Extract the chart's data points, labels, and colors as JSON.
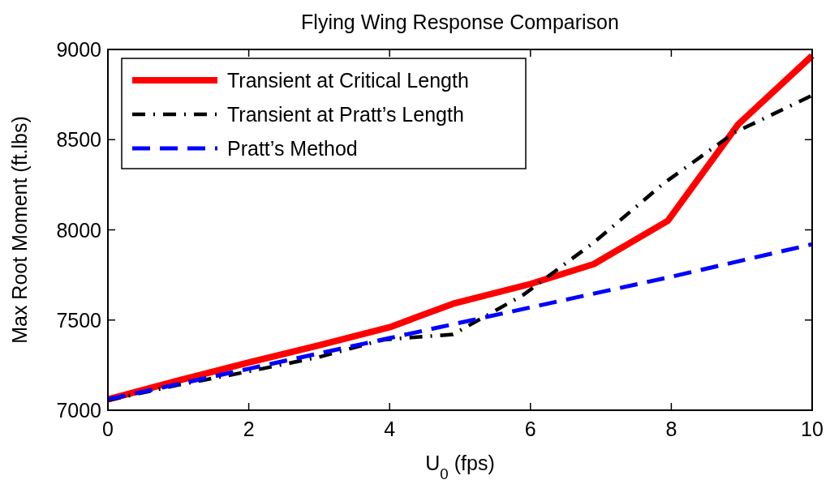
{
  "chart_data": {
    "type": "line",
    "title": "Flying Wing Response Comparison",
    "xlabel": "U$_{0}$ (fps)",
    "ylabel": "Max Root Moment (ft.lbs)",
    "xlim": [
      0,
      10
    ],
    "xticks": [
      0,
      2,
      4,
      6,
      8,
      10
    ],
    "ylim": [
      7000,
      9000
    ],
    "yticks": [
      7000,
      7500,
      8000,
      8500,
      9000
    ],
    "grid": false,
    "legend": "top left",
    "series": [
      {
        "name": "Transient at Critical Length",
        "color": "#ff0000",
        "line_style": "solid",
        "x": [
          0,
          1,
          2,
          3,
          4,
          4.9,
          6,
          6.9,
          7.95,
          8.95,
          10
        ],
        "values": [
          7060,
          7165,
          7265,
          7360,
          7460,
          7590,
          7700,
          7810,
          8050,
          8585,
          8965
        ]
      },
      {
        "name": "Transient at Pratt’s Length",
        "color": "#000000",
        "line_style": "dashdot",
        "x": [
          0,
          1,
          2,
          3,
          3.9,
          4.2,
          4.9,
          5.9,
          6.9,
          7.9,
          8.9,
          10
        ],
        "values": [
          7055,
          7140,
          7215,
          7295,
          7390,
          7400,
          7420,
          7640,
          7930,
          8260,
          8540,
          8745
        ]
      },
      {
        "name": "Pratt’s Method",
        "color": "#0000ff",
        "line_style": "dashed",
        "x": [
          0,
          2,
          4,
          6,
          8,
          10
        ],
        "values": [
          7060,
          7230,
          7400,
          7570,
          7740,
          7920
        ]
      }
    ]
  }
}
